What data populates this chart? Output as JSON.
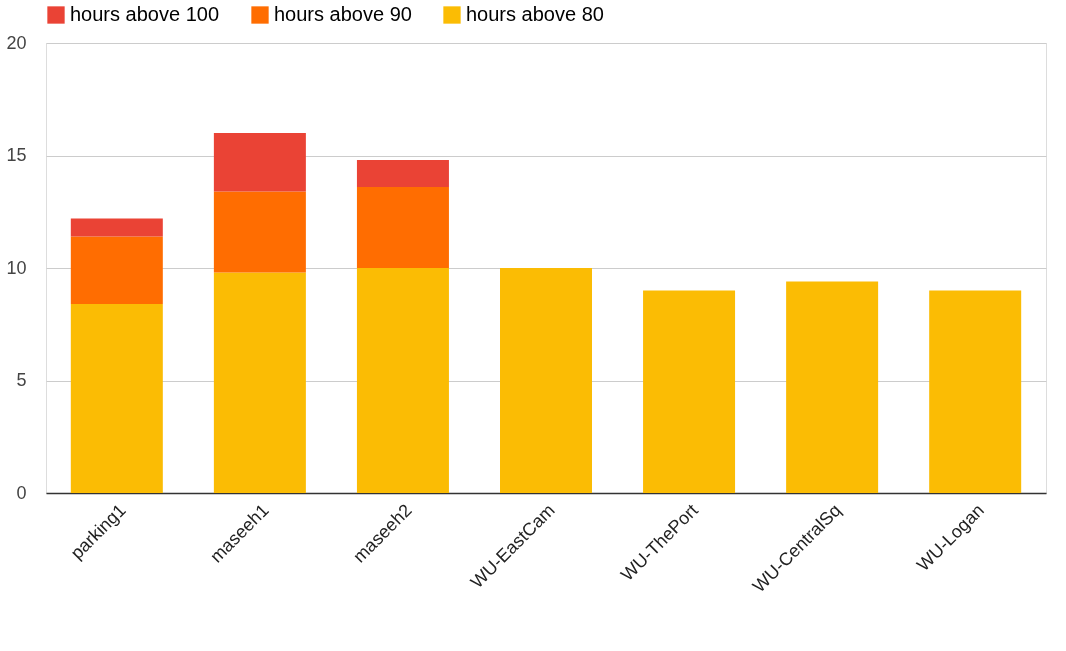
{
  "chart_data": {
    "type": "bar",
    "stacked": true,
    "legend": "top",
    "grid": "y",
    "categories": [
      "parking1",
      "maseeh1",
      "maseeh2",
      "WU-EastCam",
      "WU-ThePort",
      "WU-CentralSq",
      "WU-Logan"
    ],
    "series": [
      {
        "name": "hours above 80",
        "color": "#fbbc04",
        "values": [
          8.4,
          9.8,
          10.0,
          10.0,
          9.0,
          9.4,
          9.0
        ]
      },
      {
        "name": "hours above 90",
        "color": "#ff6d01",
        "values": [
          3.0,
          3.6,
          3.6,
          0,
          0,
          0,
          0
        ]
      },
      {
        "name": "hours above 100",
        "color": "#ea4335",
        "values": [
          0.8,
          2.6,
          1.2,
          0,
          0,
          0,
          0
        ]
      }
    ],
    "ylim": [
      0,
      20
    ],
    "yticks": [
      0,
      5,
      10,
      15,
      20
    ]
  }
}
